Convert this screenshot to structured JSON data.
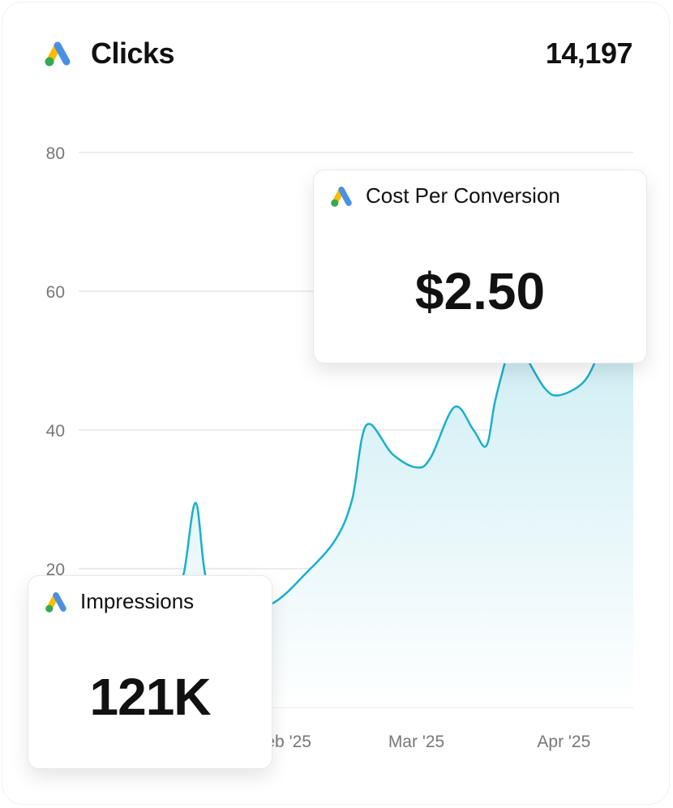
{
  "header": {
    "title": "Clicks",
    "total": "14,197",
    "icon": "google-ads-logo"
  },
  "cards": {
    "cost": {
      "label": "Cost Per Conversion",
      "value": "$2.50",
      "icon": "google-ads-logo"
    },
    "impressions": {
      "label": "Impressions",
      "value": "121K",
      "icon": "google-ads-logo"
    }
  },
  "colors": {
    "line": "#1ab0cc",
    "fill": "#d4f0f6",
    "grid": "#ececec",
    "logo_blue": "#4a90e2",
    "logo_yellow": "#fbbc04",
    "logo_green": "#34a853"
  },
  "chart_data": {
    "type": "area",
    "title": "Clicks",
    "xlabel": "",
    "ylabel": "",
    "ylim": [
      0,
      80
    ],
    "yticks": [
      {
        "value": 20,
        "label": "20"
      },
      {
        "value": 40,
        "label": "40"
      },
      {
        "value": 60,
        "label": "60"
      },
      {
        "value": 80,
        "label": "80"
      }
    ],
    "xunit": "day of 2025 (0 = Jan 1)",
    "xlim": [
      -12,
      104.6
    ],
    "xticks": [
      {
        "value": 31,
        "label": "Feb '25"
      },
      {
        "value": 59,
        "label": "Mar '25"
      },
      {
        "value": 90,
        "label": "Apr '25"
      }
    ],
    "grid": true,
    "series": [
      {
        "name": "Clicks",
        "points": [
          [
            -12,
            12
          ],
          [
            0,
            13
          ],
          [
            7,
            15
          ],
          [
            10,
            19
          ],
          [
            12.6,
            29.5
          ],
          [
            15,
            18
          ],
          [
            20,
            14
          ],
          [
            28.5,
            14.9
          ],
          [
            36,
            19.5
          ],
          [
            42,
            24.2
          ],
          [
            45.5,
            30
          ],
          [
            48.5,
            40.7
          ],
          [
            54,
            36.5
          ],
          [
            59,
            34.6
          ],
          [
            62,
            36
          ],
          [
            67,
            43.3
          ],
          [
            71,
            40
          ],
          [
            73.7,
            37.7
          ],
          [
            75.5,
            44
          ],
          [
            77.5,
            49.4
          ],
          [
            79,
            53
          ],
          [
            82,
            50.5
          ],
          [
            86,
            46
          ],
          [
            89,
            45
          ],
          [
            94,
            46.8
          ],
          [
            97,
            50.5
          ],
          [
            100,
            56
          ],
          [
            104.6,
            60
          ]
        ]
      }
    ]
  }
}
